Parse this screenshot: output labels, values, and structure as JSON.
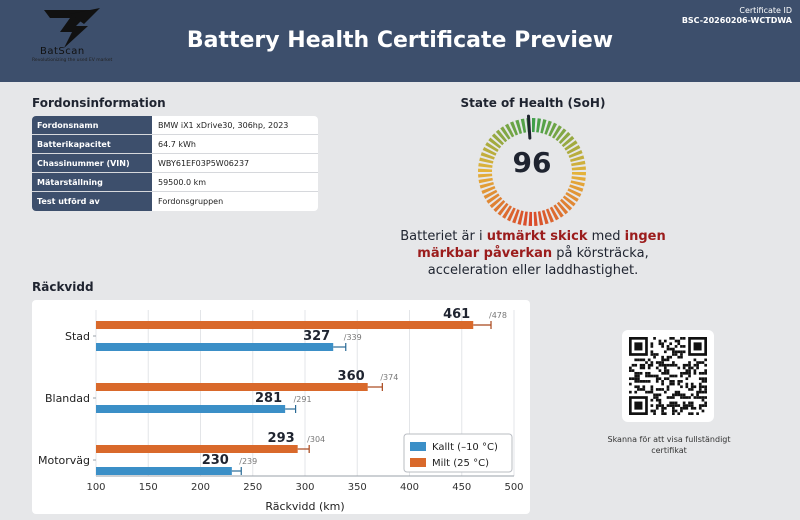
{
  "header": {
    "logo_name": "BatScan",
    "logo_tagline": "Revolutionizing the used EV market",
    "title": "Battery Health Certificate Preview",
    "certificate_label": "Certificate ID",
    "certificate_id": "BSC-20260206-WCTDWA"
  },
  "vehicle": {
    "section_title": "Fordonsinformation",
    "rows": [
      {
        "key": "Fordonsnamn",
        "value": "BMW iX1 xDrive30, 306hp, 2023"
      },
      {
        "key": "Batterikapacitet",
        "value": "64.7 kWh"
      },
      {
        "key": "Chassinummer (VIN)",
        "value": "WBY61EF03P5W06237"
      },
      {
        "key": "Mätarställning",
        "value": "59500.0 km"
      },
      {
        "key": "Test utförd av",
        "value": "Fordonsgruppen"
      }
    ]
  },
  "soh": {
    "section_title": "State of Health (SoH)",
    "value": 96,
    "value_label": "96",
    "text_before": "Batteriet är i ",
    "highlight1": "utmärkt skick",
    "text_mid": " med ",
    "highlight2": "ingen märkbar påverkan",
    "text_after": " på körsträcka, acceleration eller laddhastighet."
  },
  "range": {
    "section_title": "Räckvidd"
  },
  "chart_data": {
    "type": "bar",
    "orientation": "horizontal",
    "categories": [
      "Stad",
      "Blandad",
      "Motorväg"
    ],
    "series": [
      {
        "name": "Milt (25 °C)",
        "values": [
          461,
          360,
          293
        ],
        "upper": [
          478,
          374,
          304
        ],
        "color": "#d9692b"
      },
      {
        "name": "Kallt (–10 °C)",
        "values": [
          327,
          281,
          230
        ],
        "upper": [
          339,
          291,
          239
        ],
        "color": "#3b8fc7"
      }
    ],
    "xlabel": "Räckvidd (km)",
    "xlim": [
      100,
      500
    ],
    "xticks": [
      100,
      150,
      200,
      250,
      300,
      350,
      400,
      450,
      500
    ],
    "legend": "bottom-right",
    "grid": true
  },
  "qr": {
    "caption": "Skanna för att visa fullständigt certifikat"
  }
}
